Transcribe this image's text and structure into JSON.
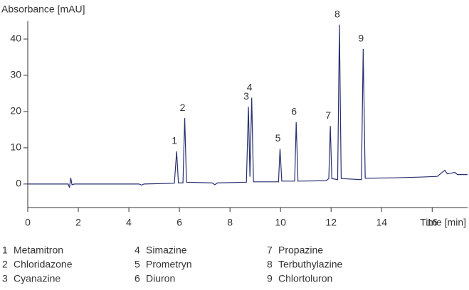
{
  "chart_data": {
    "type": "line",
    "y_label": "Absorbance [mAU]",
    "x_label": "Time [min]",
    "xlim": [
      0,
      17.4
    ],
    "ylim": [
      -6.5,
      45
    ],
    "xticks": [
      0,
      2,
      4,
      6,
      8,
      10,
      12,
      14,
      16
    ],
    "yticks": [
      0,
      10,
      20,
      30,
      40
    ],
    "series": [
      {
        "name": "Absorbance",
        "color": "#28306e",
        "x": [
          0,
          1.6,
          1.65,
          1.7,
          1.75,
          1.85,
          4.4,
          4.5,
          4.6,
          5.8,
          5.89,
          5.96,
          6.14,
          6.21,
          6.28,
          7.3,
          7.4,
          7.5,
          8.65,
          8.73,
          8.79,
          8.86,
          8.93,
          9.92,
          9.98,
          10.05,
          10.56,
          10.62,
          10.69,
          11.8,
          11.91,
          11.97,
          12.03,
          12.26,
          12.33,
          12.4,
          13.2,
          13.27,
          13.35,
          14.5,
          15.5,
          16.2,
          16.5,
          16.6,
          16.9,
          17.0,
          17.4
        ],
        "values": [
          0,
          0,
          -1,
          1.7,
          -0.2,
          0,
          0,
          -0.3,
          0,
          0.2,
          9,
          0.3,
          0.3,
          18.2,
          0.5,
          0.3,
          -0.2,
          0.3,
          0.5,
          21.3,
          2,
          23.8,
          0.6,
          0.6,
          9.7,
          0.8,
          0.8,
          17.1,
          0.8,
          0.9,
          1.5,
          16,
          1.5,
          1.2,
          44,
          1.5,
          1.2,
          37.3,
          1.6,
          1.7,
          1.9,
          2.1,
          3.8,
          2.8,
          3.2,
          2.6,
          2.6
        ]
      }
    ],
    "peaks": [
      {
        "label": "1",
        "name": "Metamitron",
        "time": 5.89,
        "height": 9
      },
      {
        "label": "2",
        "name": "Chloridazone",
        "time": 6.21,
        "height": 18.2
      },
      {
        "label": "3",
        "name": "Cyanazine",
        "time": 8.73,
        "height": 21.3
      },
      {
        "label": "4",
        "name": "Simazine",
        "time": 8.86,
        "height": 23.8
      },
      {
        "label": "5",
        "name": "Prometryn",
        "time": 9.98,
        "height": 9.7
      },
      {
        "label": "6",
        "name": "Diuron",
        "time": 10.62,
        "height": 17.1
      },
      {
        "label": "7",
        "name": "Propazine",
        "time": 11.97,
        "height": 16
      },
      {
        "label": "8",
        "name": "Terbuthylazine",
        "time": 12.33,
        "height": 44
      },
      {
        "label": "9",
        "name": "Chlortoluron",
        "time": 13.27,
        "height": 37.3
      }
    ]
  }
}
